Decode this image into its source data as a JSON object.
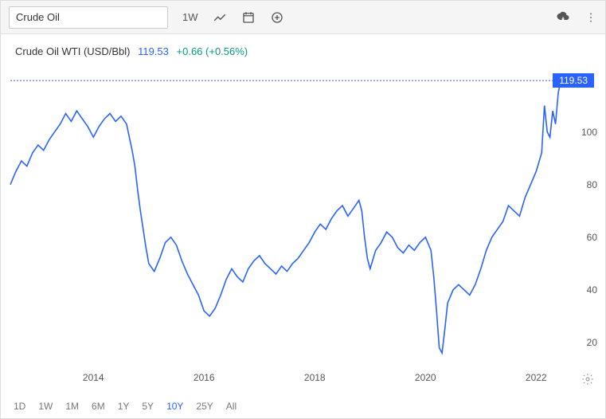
{
  "toolbar": {
    "search_value": "Crude Oil",
    "interval_label": "1W"
  },
  "info": {
    "name": "Crude Oil WTI (USD/Bbl)",
    "price": "119.53",
    "change": "+0.66 (+0.56%)"
  },
  "chart": {
    "type": "line",
    "line_color": "#2962ff",
    "line_width": 1.6,
    "background_color": "#ffffff",
    "dotted_color": "#2962ff",
    "ylim": [
      10,
      125
    ],
    "yticks": [
      20,
      40,
      60,
      80,
      100
    ],
    "current_value": 119.53,
    "current_label": "119.53",
    "xlim": [
      2012.5,
      2022.5
    ],
    "xticks": [
      2014,
      2016,
      2018,
      2020,
      2022
    ],
    "series": [
      [
        2012.5,
        80
      ],
      [
        2012.6,
        85
      ],
      [
        2012.7,
        89
      ],
      [
        2012.8,
        87
      ],
      [
        2012.9,
        92
      ],
      [
        2013.0,
        95
      ],
      [
        2013.1,
        93
      ],
      [
        2013.2,
        97
      ],
      [
        2013.3,
        100
      ],
      [
        2013.4,
        103
      ],
      [
        2013.5,
        107
      ],
      [
        2013.6,
        104
      ],
      [
        2013.7,
        108
      ],
      [
        2013.8,
        105
      ],
      [
        2013.9,
        102
      ],
      [
        2014.0,
        98
      ],
      [
        2014.1,
        102
      ],
      [
        2014.2,
        105
      ],
      [
        2014.3,
        107
      ],
      [
        2014.4,
        104
      ],
      [
        2014.5,
        106
      ],
      [
        2014.6,
        103
      ],
      [
        2014.65,
        98
      ],
      [
        2014.7,
        93
      ],
      [
        2014.75,
        87
      ],
      [
        2014.8,
        78
      ],
      [
        2014.85,
        70
      ],
      [
        2014.9,
        63
      ],
      [
        2014.95,
        56
      ],
      [
        2015.0,
        50
      ],
      [
        2015.1,
        47
      ],
      [
        2015.2,
        52
      ],
      [
        2015.3,
        58
      ],
      [
        2015.4,
        60
      ],
      [
        2015.5,
        57
      ],
      [
        2015.6,
        51
      ],
      [
        2015.7,
        46
      ],
      [
        2015.8,
        42
      ],
      [
        2015.9,
        38
      ],
      [
        2016.0,
        32
      ],
      [
        2016.1,
        30
      ],
      [
        2016.2,
        33
      ],
      [
        2016.3,
        38
      ],
      [
        2016.4,
        44
      ],
      [
        2016.5,
        48
      ],
      [
        2016.6,
        45
      ],
      [
        2016.7,
        43
      ],
      [
        2016.8,
        48
      ],
      [
        2016.9,
        51
      ],
      [
        2017.0,
        53
      ],
      [
        2017.1,
        50
      ],
      [
        2017.2,
        48
      ],
      [
        2017.3,
        46
      ],
      [
        2017.4,
        49
      ],
      [
        2017.5,
        47
      ],
      [
        2017.6,
        50
      ],
      [
        2017.7,
        52
      ],
      [
        2017.8,
        55
      ],
      [
        2017.9,
        58
      ],
      [
        2018.0,
        62
      ],
      [
        2018.1,
        65
      ],
      [
        2018.2,
        63
      ],
      [
        2018.3,
        67
      ],
      [
        2018.4,
        70
      ],
      [
        2018.5,
        72
      ],
      [
        2018.6,
        68
      ],
      [
        2018.7,
        71
      ],
      [
        2018.8,
        74
      ],
      [
        2018.85,
        70
      ],
      [
        2018.9,
        60
      ],
      [
        2018.95,
        52
      ],
      [
        2019.0,
        48
      ],
      [
        2019.1,
        55
      ],
      [
        2019.2,
        58
      ],
      [
        2019.3,
        62
      ],
      [
        2019.4,
        60
      ],
      [
        2019.5,
        56
      ],
      [
        2019.6,
        54
      ],
      [
        2019.7,
        57
      ],
      [
        2019.8,
        55
      ],
      [
        2019.9,
        58
      ],
      [
        2020.0,
        60
      ],
      [
        2020.1,
        55
      ],
      [
        2020.15,
        45
      ],
      [
        2020.2,
        32
      ],
      [
        2020.25,
        18
      ],
      [
        2020.3,
        16
      ],
      [
        2020.35,
        25
      ],
      [
        2020.4,
        35
      ],
      [
        2020.5,
        40
      ],
      [
        2020.6,
        42
      ],
      [
        2020.7,
        40
      ],
      [
        2020.8,
        38
      ],
      [
        2020.9,
        42
      ],
      [
        2021.0,
        48
      ],
      [
        2021.1,
        55
      ],
      [
        2021.2,
        60
      ],
      [
        2021.3,
        63
      ],
      [
        2021.4,
        66
      ],
      [
        2021.5,
        72
      ],
      [
        2021.6,
        70
      ],
      [
        2021.7,
        68
      ],
      [
        2021.8,
        75
      ],
      [
        2021.9,
        80
      ],
      [
        2022.0,
        85
      ],
      [
        2022.1,
        92
      ],
      [
        2022.15,
        110
      ],
      [
        2022.2,
        100
      ],
      [
        2022.25,
        98
      ],
      [
        2022.3,
        108
      ],
      [
        2022.35,
        103
      ],
      [
        2022.4,
        115
      ],
      [
        2022.45,
        119.53
      ]
    ]
  },
  "ranges": {
    "options": [
      "1D",
      "1W",
      "1M",
      "6M",
      "1Y",
      "5Y",
      "10Y",
      "25Y",
      "All"
    ],
    "active": "10Y"
  }
}
